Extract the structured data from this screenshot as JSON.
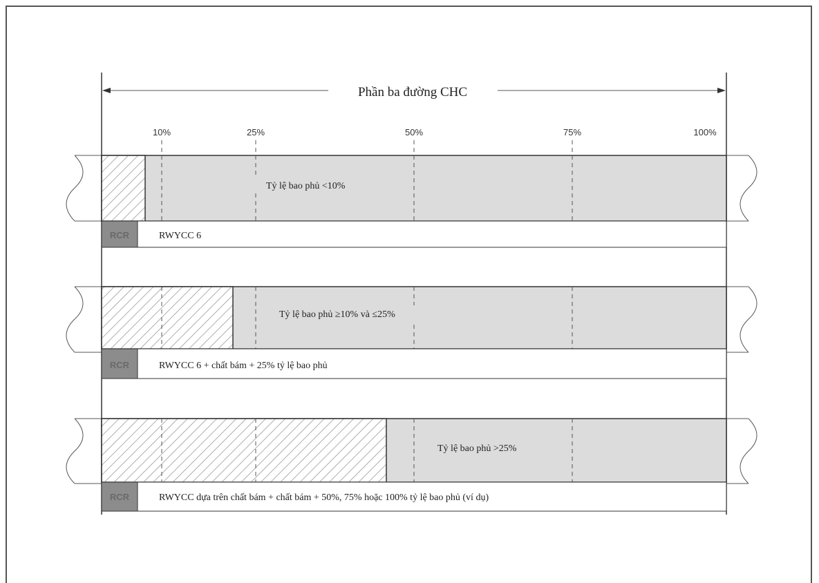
{
  "diagram": {
    "title": "Phần ba đường CHC",
    "ticks": [
      "10%",
      "25%",
      "50%",
      "75%",
      "100%"
    ],
    "rows": [
      {
        "coverage_label": "Tỷ lệ bao phủ <10%",
        "rcr_tag": "RCR",
        "rcr_text": "RWYCC 6"
      },
      {
        "coverage_label": "Tỷ lệ bao phủ ≥10% và ≤25%",
        "rcr_tag": "RCR",
        "rcr_text": "RWYCC 6 + chất bám + 25% tỷ lệ bao phủ"
      },
      {
        "coverage_label": "Tỷ lệ bao phủ >25%",
        "rcr_tag": "RCR",
        "rcr_text": "RWYCC dựa trên chất bám + chất bám + 50%, 75% hoặc 100% tỷ lệ bao phủ (ví dụ)"
      }
    ],
    "colors": {
      "runway_fill": "#dcdcdc",
      "rcr_tag_fill": "#8c8c8c",
      "hatch": "#9a9a9a",
      "line": "#333333"
    }
  }
}
